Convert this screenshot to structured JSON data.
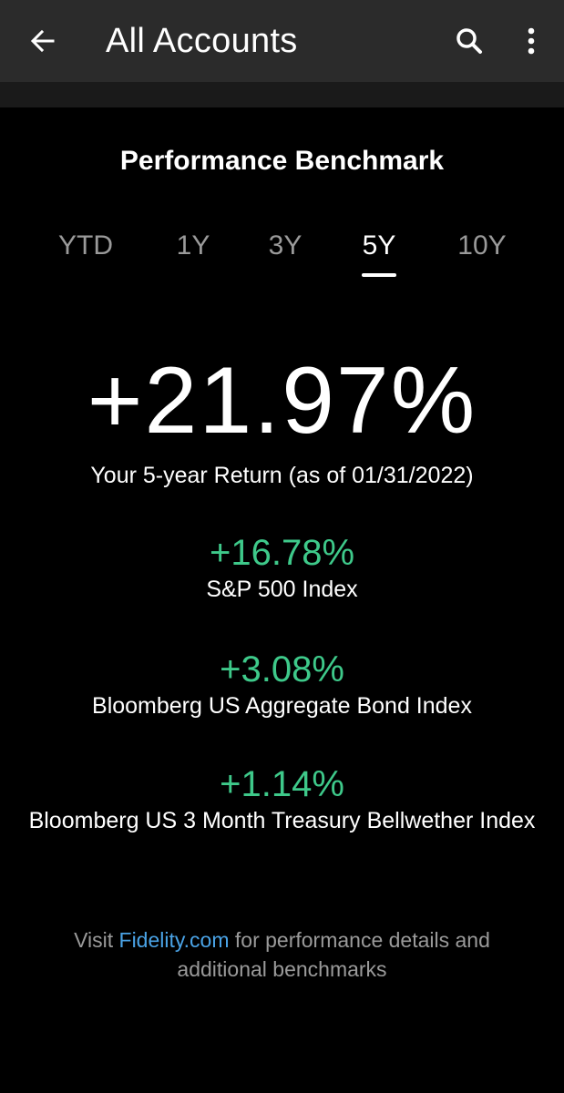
{
  "appbar": {
    "title": "All Accounts",
    "back_icon": "arrow-left-icon",
    "search_icon": "search-icon",
    "more_icon": "more-vertical-icon"
  },
  "section": {
    "title": "Performance Benchmark"
  },
  "tabs": [
    {
      "label": "YTD",
      "active": false
    },
    {
      "label": "1Y",
      "active": false
    },
    {
      "label": "3Y",
      "active": false
    },
    {
      "label": "5Y",
      "active": true
    },
    {
      "label": "10Y",
      "active": false
    }
  ],
  "return": {
    "value": "+21.97%",
    "caption": "Your 5-year Return (as of 01/31/2022)"
  },
  "benchmarks": [
    {
      "value": "+16.78%",
      "name": "S&P 500 Index"
    },
    {
      "value": "+3.08%",
      "name": "Bloomberg US Aggregate Bond Index"
    },
    {
      "value": "+1.14%",
      "name": "Bloomberg US 3 Month Treasury Bellwether Index"
    }
  ],
  "footer": {
    "prefix": "Visit ",
    "link": "Fidelity.com",
    "suffix": " for performance details and additional benchmarks"
  },
  "colors": {
    "appbar_bg": "#2b2b2b",
    "background": "#000000",
    "positive": "#3ec98a",
    "link": "#4aa3e6",
    "muted": "#9a9a9a"
  }
}
